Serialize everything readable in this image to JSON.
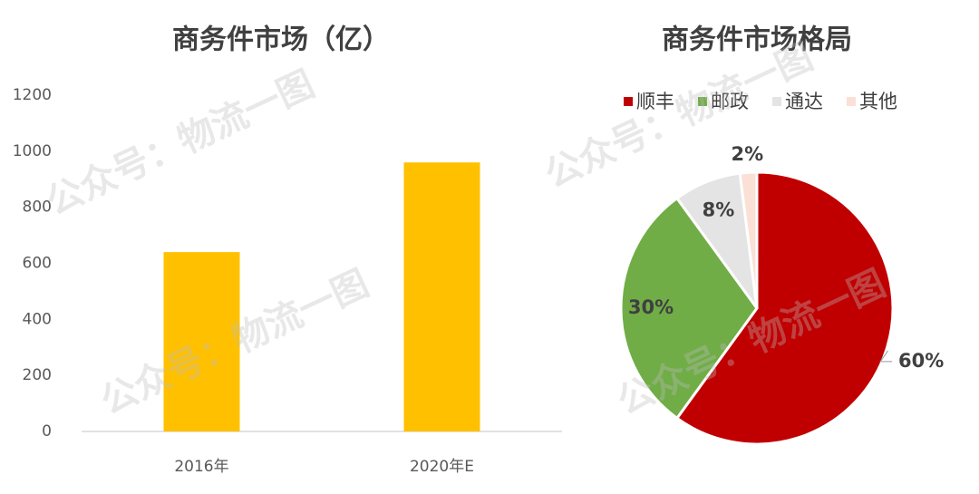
{
  "watermark": "公众号：物流一图",
  "chart_data": [
    {
      "type": "bar",
      "title": "商务件市场（亿）",
      "categories": [
        "2016年",
        "2020年E"
      ],
      "values": [
        640,
        960
      ],
      "color": "#ffc000",
      "ylim": [
        0,
        1200
      ],
      "yticks": [
        0,
        200,
        400,
        600,
        800,
        1000,
        1200
      ],
      "grid": false
    },
    {
      "type": "pie",
      "title": "商务件市场格局",
      "categories": [
        "顺丰",
        "邮政",
        "通达",
        "其他"
      ],
      "values": [
        60,
        30,
        8,
        2
      ],
      "value_labels": [
        "60%",
        "30%",
        "8%",
        "2%"
      ],
      "colors": [
        "#c00000",
        "#70ad47",
        "#e4e4e4",
        "#fbe0d6"
      ],
      "legend": "top"
    }
  ]
}
